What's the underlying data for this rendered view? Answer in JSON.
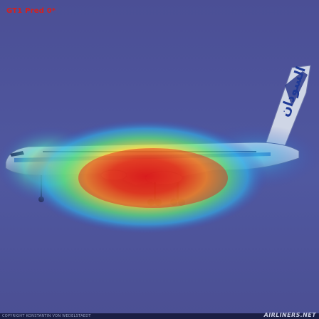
{
  "overlay": {
    "caption": "GT1 Pred 0*"
  },
  "photo": {
    "livery_text": "السودان"
  },
  "footer": {
    "copyright": "COPYRIGHT KONSTANTIN VON WEDELSTAEDT",
    "watermark": "AIRLINERS.NET"
  },
  "colors": {
    "background": "#4b4f95",
    "heat_hot": "#e8201a",
    "heat_warm": "#f5e23a",
    "heat_cool": "#2fd6e8",
    "caption": "#d6201e"
  }
}
